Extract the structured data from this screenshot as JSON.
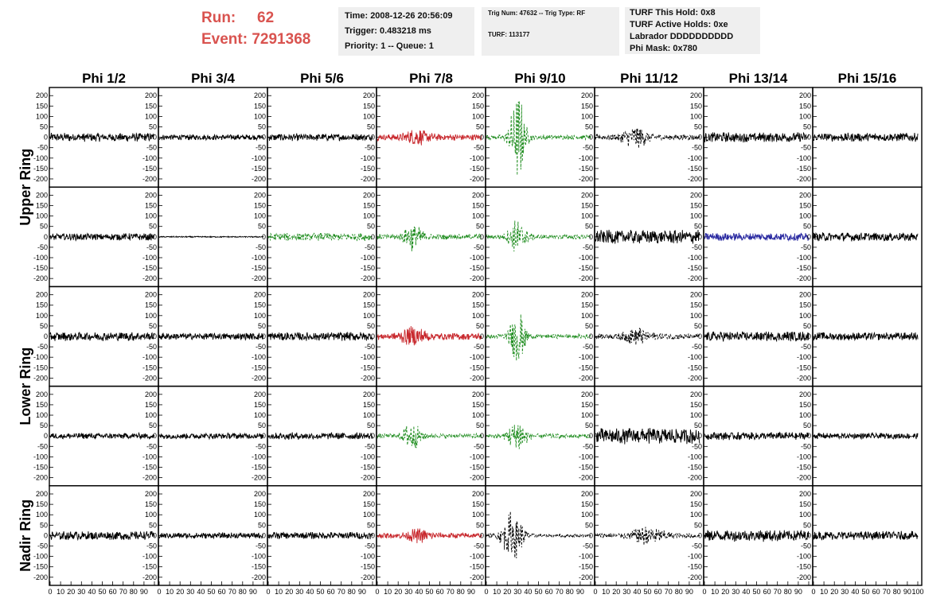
{
  "header": {
    "run_label": "Run:",
    "run_value": "62",
    "event_label": "Event:",
    "event_value": "7291368",
    "time_line": "Time: 2008-12-26 20:56:09",
    "trigger_line": "Trigger: 0.483218 ms",
    "priority_line": "Priority: 1 -- Queue: 1",
    "trig_line": "Trig Num: 47632 -- Trig Type: RF",
    "turf_line": "TURF: 113177",
    "turf_hold_line": "TURF This Hold: 0x8",
    "turf_active_line": "TURF Active Holds: 0xe",
    "labrador_line": "Labrador DDDDDDDDDD",
    "phi_mask_line": "Phi Mask: 0x780"
  },
  "chart_data": {
    "type": "line",
    "columns": [
      "Phi 1/2",
      "Phi 3/4",
      "Phi 5/6",
      "Phi 7/8",
      "Phi 9/10",
      "Phi 11/12",
      "Phi 13/14",
      "Phi 15/16"
    ],
    "ring_labels": [
      "Upper Ring",
      "Lower Ring",
      "Nadir Ring"
    ],
    "ylim": [
      -220,
      220
    ],
    "y_ticks": [
      200,
      150,
      100,
      50,
      0,
      -50,
      -100,
      -150,
      -200
    ],
    "xlim": [
      0,
      100
    ],
    "x_tick_labels": [
      "0",
      "10",
      "20",
      "30",
      "40",
      "50",
      "60",
      "70",
      "80",
      "90",
      "100"
    ],
    "colors": {
      "black": "#000000",
      "red": "#c8282d",
      "green": "#1e8c1e",
      "blue": "#2828a0"
    },
    "rows": [
      {
        "ring": "Upper Ring",
        "cells": [
          {
            "color": "black",
            "style": "solid",
            "amp": 22,
            "burst": 0,
            "center": 50,
            "width": 8
          },
          {
            "color": "black",
            "style": "solid",
            "amp": 14,
            "burst": 0,
            "center": 50,
            "width": 8
          },
          {
            "color": "black",
            "style": "solid",
            "amp": 18,
            "burst": 0,
            "center": 50,
            "width": 8
          },
          {
            "color": "red",
            "style": "solid",
            "amp": 16,
            "burst": 30,
            "center": 38,
            "width": 12
          },
          {
            "color": "green",
            "style": "dashed",
            "amp": 12,
            "burst": 220,
            "center": 30,
            "width": 7
          },
          {
            "color": "black",
            "style": "dashed",
            "amp": 14,
            "burst": 45,
            "center": 38,
            "width": 12
          },
          {
            "color": "black",
            "style": "solid",
            "amp": 25,
            "burst": 0,
            "center": 50,
            "width": 8
          },
          {
            "color": "black",
            "style": "solid",
            "amp": 22,
            "burst": 0,
            "center": 50,
            "width": 8
          }
        ]
      },
      {
        "ring": "Upper Ring",
        "cells": [
          {
            "color": "black",
            "style": "solid",
            "amp": 18,
            "burst": 0,
            "center": 50,
            "width": 8
          },
          {
            "color": "black",
            "style": "solid",
            "amp": 3,
            "burst": 0,
            "center": 50,
            "width": 8
          },
          {
            "color": "green",
            "style": "dashed",
            "amp": 20,
            "burst": 0,
            "center": 50,
            "width": 8
          },
          {
            "color": "green",
            "style": "dashed",
            "amp": 14,
            "burst": 60,
            "center": 35,
            "width": 9
          },
          {
            "color": "green",
            "style": "dashed",
            "amp": 12,
            "burst": 80,
            "center": 30,
            "width": 9
          },
          {
            "color": "black",
            "style": "solid",
            "amp": 35,
            "burst": 0,
            "center": 50,
            "width": 8
          },
          {
            "color": "blue",
            "style": "solid",
            "amp": 20,
            "burst": 0,
            "center": 50,
            "width": 8
          },
          {
            "color": "black",
            "style": "solid",
            "amp": 22,
            "burst": 0,
            "center": 50,
            "width": 8
          }
        ]
      },
      {
        "ring": "Lower Ring",
        "cells": [
          {
            "color": "black",
            "style": "solid",
            "amp": 22,
            "burst": 0,
            "center": 50,
            "width": 8
          },
          {
            "color": "black",
            "style": "solid",
            "amp": 18,
            "burst": 0,
            "center": 50,
            "width": 8
          },
          {
            "color": "black",
            "style": "solid",
            "amp": 22,
            "burst": 0,
            "center": 50,
            "width": 8
          },
          {
            "color": "red",
            "style": "solid",
            "amp": 18,
            "burst": 35,
            "center": 35,
            "width": 12
          },
          {
            "color": "green",
            "style": "dashed",
            "amp": 12,
            "burst": 140,
            "center": 30,
            "width": 7
          },
          {
            "color": "black",
            "style": "dashed",
            "amp": 14,
            "burst": 35,
            "center": 40,
            "width": 12
          },
          {
            "color": "black",
            "style": "solid",
            "amp": 25,
            "burst": 0,
            "center": 50,
            "width": 8
          },
          {
            "color": "black",
            "style": "solid",
            "amp": 20,
            "burst": 0,
            "center": 50,
            "width": 8
          }
        ]
      },
      {
        "ring": "Lower Ring",
        "cells": [
          {
            "color": "black",
            "style": "solid",
            "amp": 15,
            "burst": 0,
            "center": 50,
            "width": 8
          },
          {
            "color": "black",
            "style": "solid",
            "amp": 15,
            "burst": 0,
            "center": 50,
            "width": 8
          },
          {
            "color": "black",
            "style": "solid",
            "amp": 18,
            "burst": 0,
            "center": 50,
            "width": 8
          },
          {
            "color": "green",
            "style": "dashed",
            "amp": 12,
            "burst": 60,
            "center": 33,
            "width": 9
          },
          {
            "color": "green",
            "style": "dashed",
            "amp": 12,
            "burst": 90,
            "center": 30,
            "width": 8
          },
          {
            "color": "black",
            "style": "solid",
            "amp": 40,
            "burst": 0,
            "center": 50,
            "width": 8
          },
          {
            "color": "black",
            "style": "solid",
            "amp": 20,
            "burst": 0,
            "center": 50,
            "width": 8
          },
          {
            "color": "black",
            "style": "solid",
            "amp": 15,
            "burst": 0,
            "center": 50,
            "width": 8
          }
        ]
      },
      {
        "ring": "Nadir Ring",
        "cells": [
          {
            "color": "black",
            "style": "solid",
            "amp": 22,
            "burst": 0,
            "center": 50,
            "width": 8
          },
          {
            "color": "black",
            "style": "solid",
            "amp": 15,
            "burst": 0,
            "center": 50,
            "width": 8
          },
          {
            "color": "black",
            "style": "solid",
            "amp": 18,
            "burst": 0,
            "center": 50,
            "width": 8
          },
          {
            "color": "red",
            "style": "solid",
            "amp": 14,
            "burst": 25,
            "center": 40,
            "width": 12
          },
          {
            "color": "black",
            "style": "dashed",
            "amp": 8,
            "burst": 120,
            "center": 25,
            "width": 10
          },
          {
            "color": "black",
            "style": "dashed",
            "amp": 12,
            "burst": 40,
            "center": 50,
            "width": 15
          },
          {
            "color": "black",
            "style": "solid",
            "amp": 30,
            "burst": 0,
            "center": 50,
            "width": 8
          },
          {
            "color": "black",
            "style": "solid",
            "amp": 22,
            "burst": 0,
            "center": 50,
            "width": 8
          }
        ]
      }
    ]
  }
}
